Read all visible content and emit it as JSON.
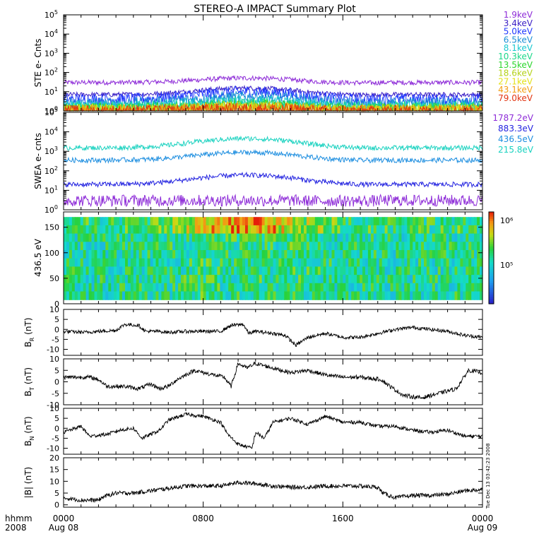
{
  "title": "STEREO-A IMPACT Summary Plot",
  "x_axis": {
    "left_label_1": "hhmm",
    "left_label_2": "2008",
    "ticks": [
      {
        "hour": 0,
        "label": "0000",
        "sublabel": "Aug 08"
      },
      {
        "hour": 8,
        "label": "0800",
        "sublabel": ""
      },
      {
        "hour": 16,
        "label": "1600",
        "sublabel": ""
      },
      {
        "hour": 24,
        "label": "0000",
        "sublabel": "Aug 09"
      }
    ]
  },
  "side_stamp": "Tue Dec 13 03:42:23 2008",
  "chart_data": [
    {
      "id": "ste",
      "type": "line",
      "ylabel": "STE e- Cnts",
      "yscale": "log",
      "ylim_exp": [
        0,
        5
      ],
      "series": [
        {
          "name": "1.9keV",
          "color": "#8e2cd8",
          "level": 30,
          "hump": 1.7
        },
        {
          "name": "3.4keV",
          "color": "#3a1ec4",
          "level": 7,
          "hump": 2.2
        },
        {
          "name": "5.0keV",
          "color": "#1f38ff",
          "level": 4,
          "hump": 2.5
        },
        {
          "name": "6.5keV",
          "color": "#1a8fd6",
          "level": 2.5,
          "hump": 2.2
        },
        {
          "name": "8.1keV",
          "color": "#19c9d0",
          "level": 1.8,
          "hump": 1.8
        },
        {
          "name": "10.3keV",
          "color": "#1cd88a",
          "level": 1.5,
          "hump": 1.6
        },
        {
          "name": "13.5keV",
          "color": "#2dd62d",
          "level": 1.3,
          "hump": 1.5
        },
        {
          "name": "18.6keV",
          "color": "#b5d21a",
          "level": 1.2,
          "hump": 1.5
        },
        {
          "name": "27.1keV",
          "color": "#e4e21a",
          "level": 1.1,
          "hump": 1.4
        },
        {
          "name": "43.1keV",
          "color": "#f29d11",
          "level": 1.05,
          "hump": 1.4
        },
        {
          "name": "79.0keV",
          "color": "#e23512",
          "level": 1.0,
          "hump": 1.3
        }
      ]
    },
    {
      "id": "swea",
      "type": "line",
      "ylabel": "SWEA e- cnts",
      "yscale": "log",
      "ylim_exp": [
        0,
        5
      ],
      "series": [
        {
          "name": "1787.2eV",
          "color": "#8e2cd8",
          "level": 3,
          "hump": 1.0
        },
        {
          "name": "883.3eV",
          "color": "#2323e0",
          "level": 20,
          "hump": 3.0
        },
        {
          "name": "436.5eV",
          "color": "#1f8fe0",
          "level": 350,
          "hump": 2.5
        },
        {
          "name": "215.8eV",
          "color": "#1ad2c0",
          "level": 1500,
          "hump": 3.0
        }
      ]
    },
    {
      "id": "pad",
      "type": "heatmap",
      "ylabel": "436.5 eV",
      "ylim": [
        0,
        180
      ],
      "yticks": [
        0,
        50,
        100,
        150
      ],
      "colorbar_labels": [
        "10⁶",
        "10⁵"
      ]
    },
    {
      "id": "br",
      "type": "line",
      "ylabel_main": "B",
      "ylabel_sub": "R",
      "ylabel_unit": " (nT)",
      "ylim": [
        -13,
        10
      ],
      "yticks": [
        -10,
        -5,
        0,
        5,
        10
      ],
      "anchors": [
        [
          0,
          -1
        ],
        [
          1.2,
          -1.5
        ],
        [
          2,
          -1
        ],
        [
          3,
          -0.5
        ],
        [
          3.5,
          2.5
        ],
        [
          4.3,
          2
        ],
        [
          4.7,
          -1
        ],
        [
          5.5,
          -1
        ],
        [
          6,
          -1.5
        ],
        [
          7,
          -1
        ],
        [
          8,
          -1
        ],
        [
          9,
          -1
        ],
        [
          9.6,
          2
        ],
        [
          10.3,
          2.5
        ],
        [
          10.6,
          -2
        ],
        [
          11,
          -1
        ],
        [
          12,
          -2
        ],
        [
          12.7,
          -3
        ],
        [
          13.3,
          -8
        ],
        [
          14,
          -4
        ],
        [
          15,
          -2
        ],
        [
          16,
          -4
        ],
        [
          17,
          -4
        ],
        [
          18,
          -2
        ],
        [
          19,
          0
        ],
        [
          20,
          1
        ],
        [
          21,
          0
        ],
        [
          22,
          -1
        ],
        [
          23,
          -3
        ],
        [
          24,
          -4
        ]
      ]
    },
    {
      "id": "bt",
      "type": "line",
      "ylabel_main": "B",
      "ylabel_sub": "T",
      "ylabel_unit": " (nT)",
      "ylim": [
        -10,
        10
      ],
      "yticks": [
        -10,
        -5,
        0,
        5,
        10
      ],
      "anchors": [
        [
          0,
          2
        ],
        [
          1.5,
          2
        ],
        [
          2,
          1
        ],
        [
          2.5,
          -2
        ],
        [
          3.5,
          -2
        ],
        [
          4.3,
          -3
        ],
        [
          5,
          -1
        ],
        [
          5.5,
          -3
        ],
        [
          6,
          -2
        ],
        [
          6.5,
          1
        ],
        [
          7,
          3
        ],
        [
          7.5,
          5
        ],
        [
          8,
          4
        ],
        [
          9.2,
          2
        ],
        [
          9.6,
          -2
        ],
        [
          10,
          8
        ],
        [
          10.5,
          6
        ],
        [
          11,
          8
        ],
        [
          12,
          6
        ],
        [
          13,
          4
        ],
        [
          14,
          5
        ],
        [
          15,
          3
        ],
        [
          16,
          2
        ],
        [
          17,
          2
        ],
        [
          18.2,
          1
        ],
        [
          18.7,
          -2
        ],
        [
          19.5,
          -6
        ],
        [
          20.5,
          -7
        ],
        [
          21.5,
          -5
        ],
        [
          22.5,
          -3
        ],
        [
          23.2,
          5
        ],
        [
          24,
          4
        ]
      ]
    },
    {
      "id": "bn",
      "type": "line",
      "ylabel_main": "B",
      "ylabel_sub": "N",
      "ylabel_unit": " (nT)",
      "ylim": [
        -13,
        10
      ],
      "yticks": [
        -10,
        -5,
        0,
        5,
        10
      ],
      "anchors": [
        [
          0,
          -2
        ],
        [
          1,
          1
        ],
        [
          1.5,
          -4
        ],
        [
          2.5,
          -3
        ],
        [
          3.2,
          -1
        ],
        [
          4,
          0
        ],
        [
          4.5,
          -5
        ],
        [
          5.5,
          -1
        ],
        [
          6,
          4
        ],
        [
          7,
          7
        ],
        [
          8,
          6
        ],
        [
          9,
          3
        ],
        [
          9.4,
          -3
        ],
        [
          10,
          -8
        ],
        [
          10.8,
          -10
        ],
        [
          11,
          -2
        ],
        [
          11.5,
          -5
        ],
        [
          12,
          3
        ],
        [
          13,
          5
        ],
        [
          14,
          2
        ],
        [
          15,
          6
        ],
        [
          16,
          3
        ],
        [
          17,
          3
        ],
        [
          18,
          1
        ],
        [
          19,
          1
        ],
        [
          20,
          -1
        ],
        [
          21,
          -2
        ],
        [
          22,
          -1
        ],
        [
          23,
          -4
        ],
        [
          24,
          -4
        ]
      ]
    },
    {
      "id": "bmag",
      "type": "line",
      "ylabel": "|B| (nT)",
      "ylim": [
        -1,
        20
      ],
      "yticks": [
        0,
        5,
        10,
        15,
        20
      ],
      "anchors": [
        [
          0,
          3
        ],
        [
          1,
          2
        ],
        [
          2,
          2
        ],
        [
          2.3,
          3.5
        ],
        [
          3,
          5
        ],
        [
          4,
          5
        ],
        [
          5,
          6
        ],
        [
          6,
          7
        ],
        [
          7,
          8
        ],
        [
          8,
          8
        ],
        [
          9,
          8
        ],
        [
          10,
          9.5
        ],
        [
          11,
          9
        ],
        [
          12,
          8
        ],
        [
          13,
          7.5
        ],
        [
          14,
          7.5
        ],
        [
          15,
          8
        ],
        [
          16,
          8
        ],
        [
          17,
          8
        ],
        [
          18,
          7.5
        ],
        [
          18.3,
          5
        ],
        [
          19,
          3
        ],
        [
          20,
          4
        ],
        [
          21,
          4
        ],
        [
          22,
          4.5
        ],
        [
          23,
          6
        ],
        [
          24,
          6.5
        ]
      ]
    }
  ]
}
